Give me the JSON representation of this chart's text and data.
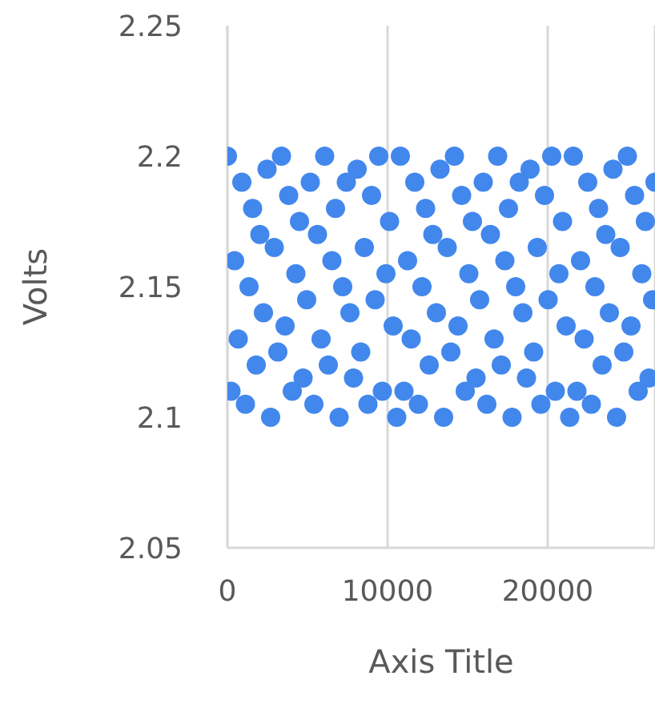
{
  "chart_data": {
    "type": "scatter",
    "xlabel": "Axis Title",
    "ylabel": "Volts",
    "marker": "circle",
    "grid": "x",
    "xlim": [
      0,
      26700
    ],
    "xticks": [
      0,
      10000,
      20000
    ],
    "ylim": [
      2.05,
      2.25
    ],
    "yticks": [
      2.05,
      2.1,
      2.15,
      2.2,
      2.25
    ],
    "x": [
      0,
      225,
      450,
      675,
      900,
      1125,
      1350,
      1575,
      1800,
      2025,
      2250,
      2475,
      2700,
      2925,
      3150,
      3375,
      3600,
      3825,
      4050,
      4275,
      4500,
      4725,
      4950,
      5175,
      5400,
      5625,
      5850,
      6075,
      6300,
      6525,
      6750,
      6975,
      7200,
      7425,
      7650,
      7875,
      8100,
      8325,
      8550,
      8775,
      9000,
      9225,
      9450,
      9675,
      9900,
      10125,
      10350,
      10575,
      10800,
      11025,
      11250,
      11475,
      11700,
      11925,
      12150,
      12375,
      12600,
      12825,
      13050,
      13275,
      13500,
      13725,
      13950,
      14175,
      14400,
      14625,
      14850,
      15075,
      15300,
      15525,
      15750,
      15975,
      16200,
      16425,
      16650,
      16875,
      17100,
      17325,
      17550,
      17775,
      18000,
      18225,
      18450,
      18675,
      18900,
      19125,
      19350,
      19575,
      19800,
      20025,
      20250,
      20475,
      20700,
      20925,
      21150,
      21375,
      21600,
      21825,
      22050,
      22275,
      22500,
      22725,
      22950,
      23175,
      23400,
      23625,
      23850,
      24075,
      24300,
      24525,
      24750,
      24975,
      25200,
      25425,
      25650,
      25875,
      26100,
      26325,
      26550,
      26700
    ],
    "series": [
      {
        "color": "#4287ec",
        "values": [
          2.2,
          2.11,
          2.16,
          2.13,
          2.19,
          2.105,
          2.15,
          2.18,
          2.12,
          2.17,
          2.14,
          2.195,
          2.1,
          2.165,
          2.125,
          2.2,
          2.135,
          2.185,
          2.11,
          2.155,
          2.175,
          2.115,
          2.145,
          2.19,
          2.105,
          2.17,
          2.13,
          2.2,
          2.12,
          2.16,
          2.18,
          2.1,
          2.15,
          2.19,
          2.14,
          2.115,
          2.195,
          2.125,
          2.165,
          2.105,
          2.185,
          2.145,
          2.2,
          2.11,
          2.155,
          2.175,
          2.135,
          2.1,
          2.2,
          2.11,
          2.16,
          2.13,
          2.19,
          2.105,
          2.15,
          2.18,
          2.12,
          2.17,
          2.14,
          2.195,
          2.1,
          2.165,
          2.125,
          2.2,
          2.135,
          2.185,
          2.11,
          2.155,
          2.175,
          2.115,
          2.145,
          2.19,
          2.105,
          2.17,
          2.13,
          2.2,
          2.12,
          2.16,
          2.18,
          2.1,
          2.15,
          2.19,
          2.14,
          2.115,
          2.195,
          2.125,
          2.165,
          2.105,
          2.185,
          2.145,
          2.2,
          2.11,
          2.155,
          2.175,
          2.135,
          2.1,
          2.2,
          2.11,
          2.16,
          2.13,
          2.19,
          2.105,
          2.15,
          2.18,
          2.12,
          2.17,
          2.14,
          2.195,
          2.1,
          2.165,
          2.125,
          2.2,
          2.135,
          2.185,
          2.11,
          2.155,
          2.175,
          2.115,
          2.145,
          2.19
        ]
      }
    ]
  }
}
